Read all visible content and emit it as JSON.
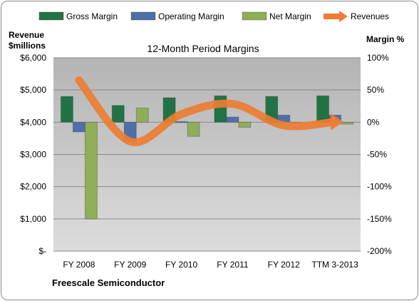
{
  "chart_data": {
    "type": "bar",
    "title": "12-Month Period Margins",
    "left_axis_label": [
      "Revenue",
      "$millions"
    ],
    "right_axis_label": "Margin %",
    "source": "Freescale Semiconductor",
    "categories": [
      "FY 2008",
      "FY 2009",
      "FY 2010",
      "FY 2011",
      "FY 2012",
      "TTM 3-2013"
    ],
    "left_axis": {
      "ylim": [
        0,
        6000
      ],
      "ticks": [
        0,
        1000,
        2000,
        3000,
        4000,
        5000,
        6000
      ],
      "tick_labels": [
        "$-",
        "$1,000",
        "$2,000",
        "$3,000",
        "$4,000",
        "$5,000",
        "$6,000"
      ]
    },
    "right_axis": {
      "ylim": [
        -200,
        100
      ],
      "ticks": [
        -200,
        -150,
        -100,
        -50,
        0,
        50,
        100
      ],
      "tick_labels": [
        "-200%",
        "-150%",
        "-100%",
        "-50%",
        "0%",
        "50%",
        "100%"
      ]
    },
    "grid": true,
    "legend_position": "top",
    "series": [
      {
        "name": "Gross Margin",
        "kind": "bar",
        "axis": "right",
        "color": "#217345",
        "values": [
          40,
          26,
          38,
          41,
          40,
          41
        ]
      },
      {
        "name": "Operating Margin",
        "kind": "bar",
        "axis": "right",
        "color": "#4f6fa8",
        "values": [
          -15,
          -30,
          1,
          8,
          11,
          11
        ]
      },
      {
        "name": "Net Margin",
        "kind": "bar",
        "axis": "right",
        "color": "#8fae57",
        "values": [
          -150,
          22,
          -22,
          -8,
          0,
          -3
        ]
      },
      {
        "name": "Revenues",
        "kind": "line",
        "axis": "left",
        "color": "#ed7d31",
        "values": [
          5300,
          3400,
          4250,
          4570,
          3900,
          4010
        ]
      }
    ]
  }
}
